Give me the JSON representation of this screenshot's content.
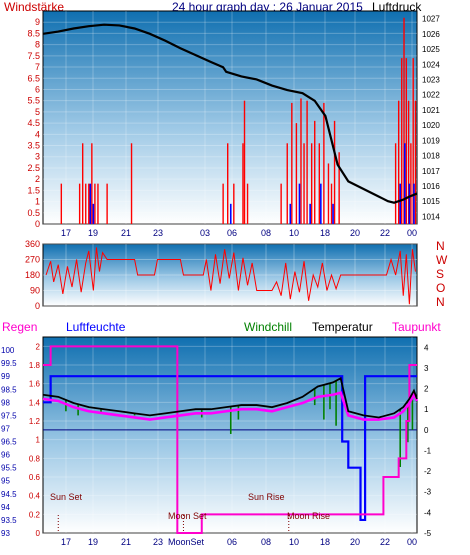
{
  "header": {
    "left_label": "Windstärke",
    "title": "24 hour graph day : 26 Januar 2015",
    "right_label": "Luftdruck"
  },
  "labels": {
    "regen": "Regen",
    "luftfeuchte": "Luftfeuchte",
    "windchill": "Windchill",
    "temperatur": "Temperatur",
    "taupunkt": "Taupunkt",
    "sun_set": "Sun Set",
    "sun_rise": "Sun Rise",
    "moon_set": "Moon Set",
    "moon_rise": "Moon Rise",
    "moon_set_axis": "MoonSet"
  },
  "colors": {
    "bg_top": "#0f6fb0",
    "bg_bottom": "#ffffff",
    "wind_bar": "#ff0000",
    "gust_bar": "#0000ff",
    "pressure": "#000000",
    "humidity": "#0000ff",
    "temperature": "#000000",
    "windchill": "#008000",
    "dewpoint": "#ff00ff",
    "rain": "#ff00cc",
    "axis_left": "#cc0000",
    "axis_right": "#000000",
    "x_tick": "#000080",
    "sun_marker": "#800000"
  },
  "chart_data": [
    {
      "type": "bar",
      "name": "wind-pressure",
      "x_ticks": [
        "17",
        "19",
        "21",
        "23",
        "03",
        "06",
        "08",
        "10",
        "18",
        "20",
        "22",
        "00"
      ],
      "ylim_left": [
        0,
        9.5
      ],
      "yticks_left": [
        0,
        0.5,
        1,
        1.5,
        2,
        2.5,
        3,
        3.5,
        4,
        4.5,
        5,
        5.5,
        6,
        6.5,
        7,
        7.5,
        8,
        8.5,
        9
      ],
      "ylim_right": [
        1013.5,
        1027.5
      ],
      "yticks_right": [
        1014,
        1015,
        1016,
        1017,
        1018,
        1019,
        1020,
        1021,
        1022,
        1023,
        1024,
        1025,
        1026,
        1027
      ],
      "wind": [
        {
          "t": 1.2,
          "v": 1.8
        },
        {
          "t": 2.4,
          "v": 1.8
        },
        {
          "t": 2.6,
          "v": 3.6
        },
        {
          "t": 2.8,
          "v": 1.8
        },
        {
          "t": 3.0,
          "v": 1.8
        },
        {
          "t": 3.2,
          "v": 3.6
        },
        {
          "t": 3.4,
          "v": 1.8
        },
        {
          "t": 3.6,
          "v": 1.8
        },
        {
          "t": 4.2,
          "v": 1.8
        },
        {
          "t": 5.8,
          "v": 3.6
        },
        {
          "t": 11.8,
          "v": 1.8
        },
        {
          "t": 12.1,
          "v": 3.6
        },
        {
          "t": 12.5,
          "v": 1.8
        },
        {
          "t": 13.1,
          "v": 3.6
        },
        {
          "t": 13.2,
          "v": 5.5
        },
        {
          "t": 13.4,
          "v": 1.8
        },
        {
          "t": 15.6,
          "v": 1.8
        },
        {
          "t": 16.0,
          "v": 3.6
        },
        {
          "t": 16.3,
          "v": 5.4
        },
        {
          "t": 16.6,
          "v": 4.5
        },
        {
          "t": 16.9,
          "v": 5.6
        },
        {
          "t": 17.1,
          "v": 3.6
        },
        {
          "t": 17.3,
          "v": 5.5
        },
        {
          "t": 17.6,
          "v": 3.6
        },
        {
          "t": 17.8,
          "v": 4.6
        },
        {
          "t": 18.1,
          "v": 3.6
        },
        {
          "t": 18.4,
          "v": 5.4
        },
        {
          "t": 18.7,
          "v": 2.7
        },
        {
          "t": 18.9,
          "v": 1.8
        },
        {
          "t": 19.1,
          "v": 4.6
        },
        {
          "t": 19.4,
          "v": 3.2
        },
        {
          "t": 23.1,
          "v": 3.6
        },
        {
          "t": 23.3,
          "v": 5.5
        },
        {
          "t": 23.5,
          "v": 7.4
        },
        {
          "t": 23.65,
          "v": 9.2
        },
        {
          "t": 23.8,
          "v": 7.4
        },
        {
          "t": 23.95,
          "v": 5.5
        },
        {
          "t": 24.1,
          "v": 3.6
        },
        {
          "t": 24.25,
          "v": 7.4
        },
        {
          "t": 24.4,
          "v": 5.5
        }
      ],
      "gust": [
        {
          "t": 3.1,
          "v": 1.8
        },
        {
          "t": 3.3,
          "v": 0.9
        },
        {
          "t": 12.3,
          "v": 0.9
        },
        {
          "t": 16.2,
          "v": 0.9
        },
        {
          "t": 16.8,
          "v": 1.8
        },
        {
          "t": 17.5,
          "v": 0.9
        },
        {
          "t": 18.2,
          "v": 1.8
        },
        {
          "t": 19.0,
          "v": 0.9
        },
        {
          "t": 23.4,
          "v": 1.8
        },
        {
          "t": 23.7,
          "v": 3.6
        },
        {
          "t": 24.0,
          "v": 1.8
        },
        {
          "t": 24.3,
          "v": 1.8
        }
      ],
      "pressure": [
        {
          "t": 0,
          "v": 1026.0
        },
        {
          "t": 1,
          "v": 1026.15
        },
        {
          "t": 2,
          "v": 1026.35
        },
        {
          "t": 3,
          "v": 1026.5
        },
        {
          "t": 4,
          "v": 1026.6
        },
        {
          "t": 5,
          "v": 1026.55
        },
        {
          "t": 6,
          "v": 1026.35
        },
        {
          "t": 7,
          "v": 1026.0
        },
        {
          "t": 8,
          "v": 1025.55
        },
        {
          "t": 9,
          "v": 1025.05
        },
        {
          "t": 10,
          "v": 1024.6
        },
        {
          "t": 11,
          "v": 1024.15
        },
        {
          "t": 11.8,
          "v": 1023.8
        },
        {
          "t": 12,
          "v": 1023.5
        },
        {
          "t": 13,
          "v": 1023.2
        },
        {
          "t": 14,
          "v": 1023.0
        },
        {
          "t": 15,
          "v": 1022.6
        },
        {
          "t": 16,
          "v": 1022.3
        },
        {
          "t": 17,
          "v": 1022.1
        },
        {
          "t": 17.8,
          "v": 1021.6
        },
        {
          "t": 18.5,
          "v": 1020.6
        },
        {
          "t": 19.3,
          "v": 1017.4
        },
        {
          "t": 20,
          "v": 1016.3
        },
        {
          "t": 21,
          "v": 1015.8
        },
        {
          "t": 22,
          "v": 1015.3
        },
        {
          "t": 22.6,
          "v": 1015.0
        },
        {
          "t": 23,
          "v": 1014.9
        },
        {
          "t": 23.6,
          "v": 1015.1
        },
        {
          "t": 24,
          "v": 1015.3
        },
        {
          "t": 24.5,
          "v": 1015.5
        }
      ]
    },
    {
      "type": "line",
      "name": "wind-direction",
      "ylim": [
        0,
        360
      ],
      "yticks": [
        0,
        90,
        180,
        270,
        360
      ],
      "compass": [
        "N",
        "W",
        "S",
        "O",
        "N"
      ],
      "direction": [
        {
          "t": 0.2,
          "v": 180
        },
        {
          "t": 0.5,
          "v": 260
        },
        {
          "t": 0.7,
          "v": 140
        },
        {
          "t": 1.0,
          "v": 240
        },
        {
          "t": 1.3,
          "v": 70
        },
        {
          "t": 1.6,
          "v": 230
        },
        {
          "t": 1.9,
          "v": 110
        },
        {
          "t": 2.2,
          "v": 270
        },
        {
          "t": 2.5,
          "v": 80
        },
        {
          "t": 2.8,
          "v": 250
        },
        {
          "t": 3.0,
          "v": 320
        },
        {
          "t": 3.3,
          "v": 90
        },
        {
          "t": 3.5,
          "v": 340
        },
        {
          "t": 3.7,
          "v": 200
        },
        {
          "t": 3.9,
          "v": 310
        },
        {
          "t": 4.2,
          "v": 270
        },
        {
          "t": 5.0,
          "v": 270
        },
        {
          "t": 6.0,
          "v": 270
        },
        {
          "t": 6.2,
          "v": 180
        },
        {
          "t": 7.3,
          "v": 180
        },
        {
          "t": 7.5,
          "v": 270
        },
        {
          "t": 9.0,
          "v": 270
        },
        {
          "t": 9.2,
          "v": 180
        },
        {
          "t": 10.5,
          "v": 180
        },
        {
          "t": 10.7,
          "v": 270
        },
        {
          "t": 11.0,
          "v": 90
        },
        {
          "t": 11.3,
          "v": 300
        },
        {
          "t": 11.6,
          "v": 130
        },
        {
          "t": 11.9,
          "v": 330
        },
        {
          "t": 12.2,
          "v": 160
        },
        {
          "t": 12.5,
          "v": 310
        },
        {
          "t": 12.8,
          "v": 90
        },
        {
          "t": 13.1,
          "v": 280
        },
        {
          "t": 13.4,
          "v": 120
        },
        {
          "t": 13.7,
          "v": 250
        },
        {
          "t": 14.0,
          "v": 90
        },
        {
          "t": 14.5,
          "v": 90
        },
        {
          "t": 15.0,
          "v": 90
        },
        {
          "t": 15.3,
          "v": 140
        },
        {
          "t": 15.6,
          "v": 60
        },
        {
          "t": 15.9,
          "v": 250
        },
        {
          "t": 16.2,
          "v": 40
        },
        {
          "t": 16.5,
          "v": 200
        },
        {
          "t": 16.8,
          "v": 80
        },
        {
          "t": 17.1,
          "v": 260
        },
        {
          "t": 17.4,
          "v": 30
        },
        {
          "t": 17.7,
          "v": 180
        },
        {
          "t": 18.0,
          "v": 110
        },
        {
          "t": 18.3,
          "v": 250
        },
        {
          "t": 18.6,
          "v": 90
        },
        {
          "t": 18.9,
          "v": 180
        },
        {
          "t": 19.2,
          "v": 100
        },
        {
          "t": 19.5,
          "v": 180
        },
        {
          "t": 20.5,
          "v": 180
        },
        {
          "t": 21.5,
          "v": 180
        },
        {
          "t": 22.5,
          "v": 180
        },
        {
          "t": 22.8,
          "v": 270
        },
        {
          "t": 23.1,
          "v": 180
        },
        {
          "t": 23.4,
          "v": 320
        },
        {
          "t": 23.6,
          "v": 60
        },
        {
          "t": 23.8,
          "v": 300
        },
        {
          "t": 24.0,
          "v": 10
        },
        {
          "t": 24.2,
          "v": 330
        },
        {
          "t": 24.4,
          "v": 200
        }
      ]
    },
    {
      "type": "line",
      "name": "temperature-humidity",
      "ylim_rain": [
        0,
        2.1
      ],
      "yticks_rain": [
        0,
        0.2,
        0.4,
        0.6,
        0.8,
        1,
        1.2,
        1.4,
        1.6,
        1.8,
        2
      ],
      "ylim_humidity": [
        93,
        100.5
      ],
      "yticks_humidity": [
        93,
        93.5,
        94,
        94.5,
        95,
        95.5,
        96,
        96.5,
        97,
        97.5,
        98,
        98.5,
        99,
        99.5,
        100
      ],
      "ylim_temp": [
        -5,
        4.5
      ],
      "yticks_temp": [
        -5,
        -4,
        -3,
        -2,
        -1,
        0,
        1,
        2,
        3,
        4
      ],
      "humidity": [
        {
          "t": 0,
          "v": 98
        },
        {
          "t": 0.5,
          "v": 98
        },
        {
          "t": 0.5,
          "v": 99
        },
        {
          "t": 19.6,
          "v": 99
        },
        {
          "t": 19.6,
          "v": 96.5
        },
        {
          "t": 20.0,
          "v": 96.5
        },
        {
          "t": 20.0,
          "v": 95.5
        },
        {
          "t": 20.8,
          "v": 95.5
        },
        {
          "t": 20.8,
          "v": 93.5
        },
        {
          "t": 21.1,
          "v": 93.5
        },
        {
          "t": 21.1,
          "v": 99
        },
        {
          "t": 24.5,
          "v": 99
        }
      ],
      "temperature": [
        {
          "t": 0,
          "v": 1.7
        },
        {
          "t": 1,
          "v": 1.6
        },
        {
          "t": 2,
          "v": 1.3
        },
        {
          "t": 3,
          "v": 1.1
        },
        {
          "t": 4,
          "v": 1.0
        },
        {
          "t": 5,
          "v": 0.9
        },
        {
          "t": 6,
          "v": 0.8
        },
        {
          "t": 7,
          "v": 0.7
        },
        {
          "t": 8,
          "v": 0.8
        },
        {
          "t": 9,
          "v": 0.9
        },
        {
          "t": 10,
          "v": 1.0
        },
        {
          "t": 11,
          "v": 1.0
        },
        {
          "t": 12,
          "v": 1.1
        },
        {
          "t": 13,
          "v": 1.2
        },
        {
          "t": 14,
          "v": 1.2
        },
        {
          "t": 15,
          "v": 1.1
        },
        {
          "t": 16,
          "v": 1.3
        },
        {
          "t": 17,
          "v": 1.6
        },
        {
          "t": 18,
          "v": 2.1
        },
        {
          "t": 19,
          "v": 2.3
        },
        {
          "t": 19.5,
          "v": 2.5
        },
        {
          "t": 20,
          "v": 0.9
        },
        {
          "t": 21,
          "v": 0.7
        },
        {
          "t": 22,
          "v": 0.6
        },
        {
          "t": 23,
          "v": 0.8
        },
        {
          "t": 23.6,
          "v": 1.1
        },
        {
          "t": 24,
          "v": 1.5
        },
        {
          "t": 24.3,
          "v": 1.9
        },
        {
          "t": 24.5,
          "v": 1.5
        }
      ],
      "dewpoint": [
        {
          "t": 0,
          "v": 1.5
        },
        {
          "t": 1,
          "v": 1.4
        },
        {
          "t": 2,
          "v": 1.1
        },
        {
          "t": 3,
          "v": 0.9
        },
        {
          "t": 4,
          "v": 0.8
        },
        {
          "t": 5,
          "v": 0.7
        },
        {
          "t": 6,
          "v": 0.6
        },
        {
          "t": 7,
          "v": 0.5
        },
        {
          "t": 8,
          "v": 0.6
        },
        {
          "t": 9,
          "v": 0.7
        },
        {
          "t": 10,
          "v": 0.8
        },
        {
          "t": 11,
          "v": 0.8
        },
        {
          "t": 12,
          "v": 0.9
        },
        {
          "t": 13,
          "v": 1.0
        },
        {
          "t": 14,
          "v": 1.0
        },
        {
          "t": 15,
          "v": 0.9
        },
        {
          "t": 16,
          "v": 1.1
        },
        {
          "t": 17,
          "v": 1.3
        },
        {
          "t": 18,
          "v": 1.6
        },
        {
          "t": 19,
          "v": 1.7
        },
        {
          "t": 19.5,
          "v": 1.8
        },
        {
          "t": 20,
          "v": 0.7
        },
        {
          "t": 21,
          "v": 0.5
        },
        {
          "t": 22,
          "v": 0.5
        },
        {
          "t": 23,
          "v": 0.6
        },
        {
          "t": 23.6,
          "v": 0.9
        },
        {
          "t": 24,
          "v": 1.3
        },
        {
          "t": 24.3,
          "v": 1.7
        },
        {
          "t": 24.5,
          "v": 1.4
        }
      ],
      "windchill_drops": [
        {
          "t": 1.5,
          "v": 0.9
        },
        {
          "t": 2.3,
          "v": 0.7
        },
        {
          "t": 3.8,
          "v": 0.8
        },
        {
          "t": 6.0,
          "v": 0.7
        },
        {
          "t": 10.4,
          "v": 0.6
        },
        {
          "t": 12.3,
          "v": -0.2
        },
        {
          "t": 12.8,
          "v": 0.5
        },
        {
          "t": 17.8,
          "v": 1.2
        },
        {
          "t": 18.4,
          "v": 0.5
        },
        {
          "t": 18.8,
          "v": 1.0
        },
        {
          "t": 19.2,
          "v": 0.2
        },
        {
          "t": 23.4,
          "v": -1.8
        },
        {
          "t": 23.9,
          "v": -0.6
        },
        {
          "t": 24.2,
          "v": 0.0
        }
      ],
      "rain_total": [
        {
          "t": 0,
          "v": 1.8
        },
        {
          "t": 0.5,
          "v": 1.8
        },
        {
          "t": 0.5,
          "v": 2.0
        },
        {
          "t": 8.8,
          "v": 2.0
        },
        {
          "t": 8.8,
          "v": 0.0
        },
        {
          "t": 10.4,
          "v": 0.0
        },
        {
          "t": 10.4,
          "v": 0.2
        },
        {
          "t": 22.3,
          "v": 0.2
        },
        {
          "t": 22.3,
          "v": 0.6
        },
        {
          "t": 23.3,
          "v": 0.6
        },
        {
          "t": 23.3,
          "v": 0.8
        },
        {
          "t": 23.8,
          "v": 0.8
        },
        {
          "t": 23.8,
          "v": 1.2
        },
        {
          "t": 24.0,
          "v": 1.2
        },
        {
          "t": 24.0,
          "v": 1.8
        },
        {
          "t": 24.5,
          "v": 1.8
        }
      ],
      "sun_set_t": 1.0,
      "sun_rise_t": 14.0,
      "moon_set_t": 9.2,
      "moon_rise_t": 16.1
    }
  ]
}
